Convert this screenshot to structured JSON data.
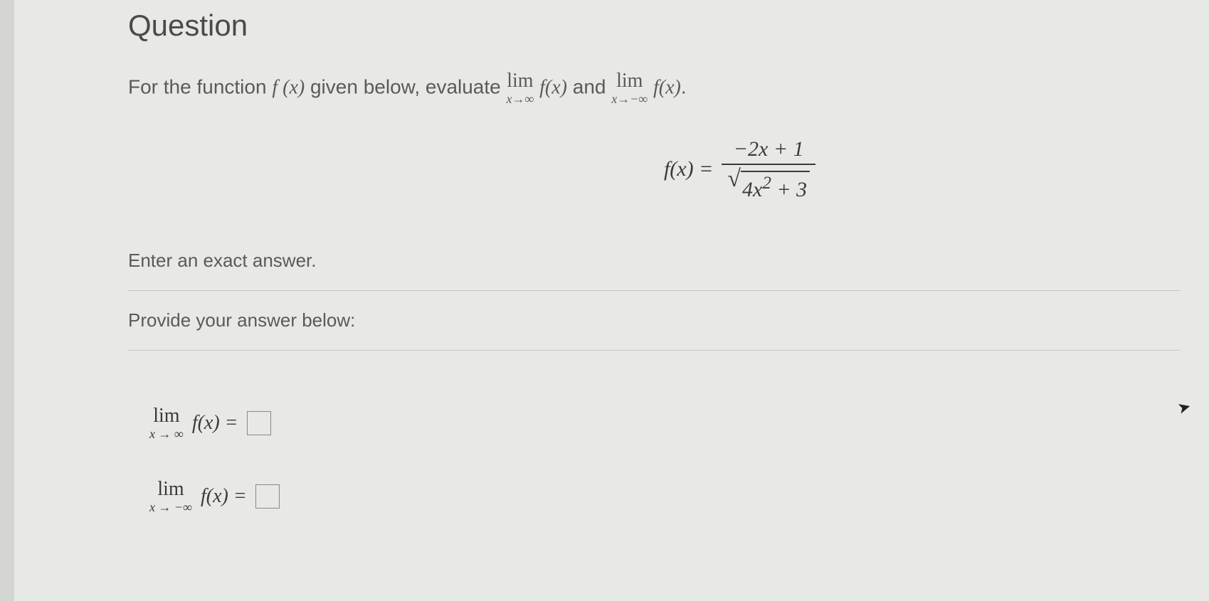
{
  "title": "Question",
  "prompt": {
    "pre": "For the function ",
    "fx": "f (x)",
    "mid": " given below, evaluate ",
    "lim1_top": "lim",
    "lim1_bot": "x→∞",
    "lim1_fn": "f(x)",
    "and": " and ",
    "lim2_top": "lim",
    "lim2_bot": "x→−∞",
    "lim2_fn": "f(x)",
    "end": "."
  },
  "formula": {
    "lhs": "f(x) =",
    "numerator": "−2x + 1",
    "radicand": "4x",
    "radicand_exp": "2",
    "radicand_tail": " + 3"
  },
  "instr1": "Enter an exact answer.",
  "instr2": "Provide your answer below:",
  "answers": {
    "a1_top": "lim",
    "a1_bot": "x → ∞",
    "a1_fn": "f(x) =",
    "a2_top": "lim",
    "a2_bot": "x → −∞",
    "a2_fn": "f(x) ="
  },
  "colors": {
    "background": "#e8e8e6",
    "text": "#3a3a3a",
    "rule": "#c8c8c6"
  }
}
